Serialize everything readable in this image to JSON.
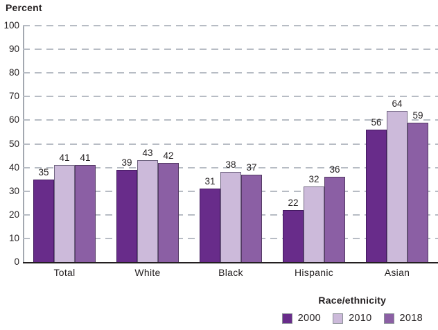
{
  "chart": {
    "y_axis_title": "Percent",
    "legend": {
      "title": "Race/ethnicity"
    }
  },
  "chart_data": {
    "type": "bar",
    "title": "",
    "ylabel": "Percent",
    "xlabel": "Race/ethnicity",
    "ylim": [
      0,
      100
    ],
    "ytick_step": 10,
    "grid": "dashed-horizontal",
    "legend_position": "bottom-right",
    "bar_value_labels": true,
    "categories": [
      "Total",
      "White",
      "Black",
      "Hispanic",
      "Asian"
    ],
    "series": [
      {
        "name": "2000",
        "color": "#682c8a",
        "border_color": "#41195e",
        "values": [
          35,
          39,
          31,
          22,
          56
        ]
      },
      {
        "name": "2010",
        "color": "#ccbada",
        "border_color": "#6f6480",
        "values": [
          41,
          43,
          38,
          32,
          64
        ]
      },
      {
        "name": "2018",
        "color": "#8b5fa4",
        "border_color": "#533963",
        "values": [
          41,
          42,
          37,
          36,
          59
        ]
      }
    ]
  },
  "colors": {
    "text": "#231f20",
    "gridline": "#b7bcc4",
    "axis_spine": "#a3a8b0",
    "baseline": "#231f20",
    "background": "#ffffff"
  }
}
